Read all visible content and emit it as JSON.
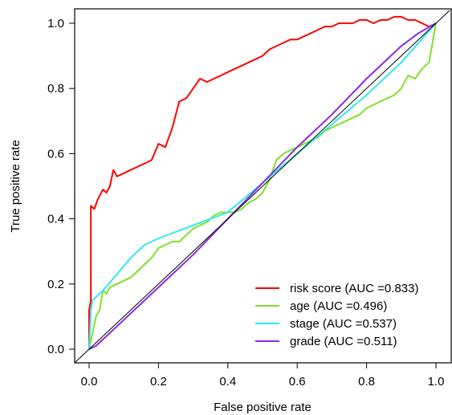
{
  "chart_data": {
    "type": "line",
    "title": "",
    "xlabel": "False positive rate",
    "ylabel": "True positive rate",
    "xlim": [
      0,
      1
    ],
    "ylim": [
      0,
      1
    ],
    "xticks": [
      "0.0",
      "0.2",
      "0.4",
      "0.6",
      "0.8",
      "1.0"
    ],
    "yticks": [
      "0.0",
      "0.2",
      "0.4",
      "0.6",
      "0.8",
      "1.0"
    ],
    "grid": false,
    "legend_position": "bottom-right",
    "reference_line": {
      "x": [
        0,
        1
      ],
      "y": [
        0,
        1
      ],
      "color": "#000000"
    },
    "series": [
      {
        "name": "risk score (AUC =0.833)",
        "color": "#ff0000",
        "x": [
          0,
          0,
          0.005,
          0.005,
          0.015,
          0.025,
          0.03,
          0.04,
          0.05,
          0.06,
          0.07,
          0.08,
          0.1,
          0.12,
          0.14,
          0.16,
          0.18,
          0.2,
          0.22,
          0.24,
          0.26,
          0.28,
          0.3,
          0.32,
          0.34,
          0.36,
          0.38,
          0.4,
          0.42,
          0.44,
          0.46,
          0.48,
          0.5,
          0.52,
          0.54,
          0.56,
          0.58,
          0.6,
          0.62,
          0.64,
          0.66,
          0.68,
          0.7,
          0.72,
          0.74,
          0.76,
          0.78,
          0.8,
          0.82,
          0.84,
          0.86,
          0.88,
          0.9,
          0.92,
          0.94,
          0.96,
          0.98,
          1.0
        ],
        "y": [
          0,
          0.12,
          0.15,
          0.44,
          0.43,
          0.46,
          0.47,
          0.49,
          0.48,
          0.5,
          0.55,
          0.53,
          0.54,
          0.55,
          0.56,
          0.57,
          0.58,
          0.63,
          0.62,
          0.68,
          0.76,
          0.77,
          0.8,
          0.83,
          0.82,
          0.83,
          0.84,
          0.85,
          0.86,
          0.87,
          0.88,
          0.89,
          0.9,
          0.92,
          0.93,
          0.94,
          0.95,
          0.95,
          0.96,
          0.97,
          0.98,
          0.99,
          0.99,
          1.0,
          1.0,
          1.0,
          1.01,
          1.01,
          1.0,
          1.01,
          1.01,
          1.02,
          1.02,
          1.01,
          1.01,
          1.0,
          0.99,
          1.0
        ]
      },
      {
        "name": "age (AUC =0.496)",
        "color": "#7fe12b",
        "x": [
          0,
          0.01,
          0.02,
          0.03,
          0.04,
          0.05,
          0.06,
          0.08,
          0.1,
          0.12,
          0.14,
          0.16,
          0.18,
          0.2,
          0.22,
          0.24,
          0.26,
          0.28,
          0.3,
          0.32,
          0.34,
          0.36,
          0.38,
          0.4,
          0.42,
          0.44,
          0.46,
          0.48,
          0.5,
          0.52,
          0.54,
          0.56,
          0.58,
          0.6,
          0.62,
          0.64,
          0.66,
          0.68,
          0.7,
          0.72,
          0.74,
          0.76,
          0.78,
          0.8,
          0.82,
          0.84,
          0.86,
          0.88,
          0.9,
          0.92,
          0.94,
          0.96,
          0.98,
          0.99,
          1.0
        ],
        "y": [
          0,
          0.05,
          0.1,
          0.12,
          0.18,
          0.17,
          0.19,
          0.2,
          0.21,
          0.22,
          0.24,
          0.26,
          0.28,
          0.31,
          0.32,
          0.33,
          0.33,
          0.35,
          0.37,
          0.38,
          0.39,
          0.41,
          0.42,
          0.42,
          0.42,
          0.43,
          0.45,
          0.46,
          0.48,
          0.52,
          0.58,
          0.6,
          0.61,
          0.62,
          0.63,
          0.64,
          0.65,
          0.67,
          0.68,
          0.69,
          0.7,
          0.71,
          0.72,
          0.74,
          0.75,
          0.76,
          0.77,
          0.78,
          0.8,
          0.84,
          0.83,
          0.86,
          0.88,
          0.94,
          1.0
        ]
      },
      {
        "name": "stage (AUC =0.537)",
        "color": "#2ee8f0",
        "x": [
          0,
          0.005,
          0.01,
          0.04,
          0.08,
          0.12,
          0.16,
          0.2,
          0.3,
          0.4,
          0.5,
          0.6,
          0.7,
          0.8,
          0.9,
          1.0
        ],
        "y": [
          0,
          0.12,
          0.15,
          0.18,
          0.23,
          0.28,
          0.32,
          0.34,
          0.38,
          0.42,
          0.51,
          0.6,
          0.69,
          0.78,
          0.88,
          1.0
        ]
      },
      {
        "name": "grade (AUC =0.511)",
        "color": "#8b2be2",
        "x": [
          0,
          0.02,
          0.1,
          0.2,
          0.3,
          0.4,
          0.5,
          0.6,
          0.7,
          0.8,
          0.9,
          0.95,
          1.0
        ],
        "y": [
          0,
          0.01,
          0.09,
          0.19,
          0.29,
          0.4,
          0.51,
          0.62,
          0.72,
          0.83,
          0.93,
          0.97,
          1.0
        ]
      }
    ]
  }
}
